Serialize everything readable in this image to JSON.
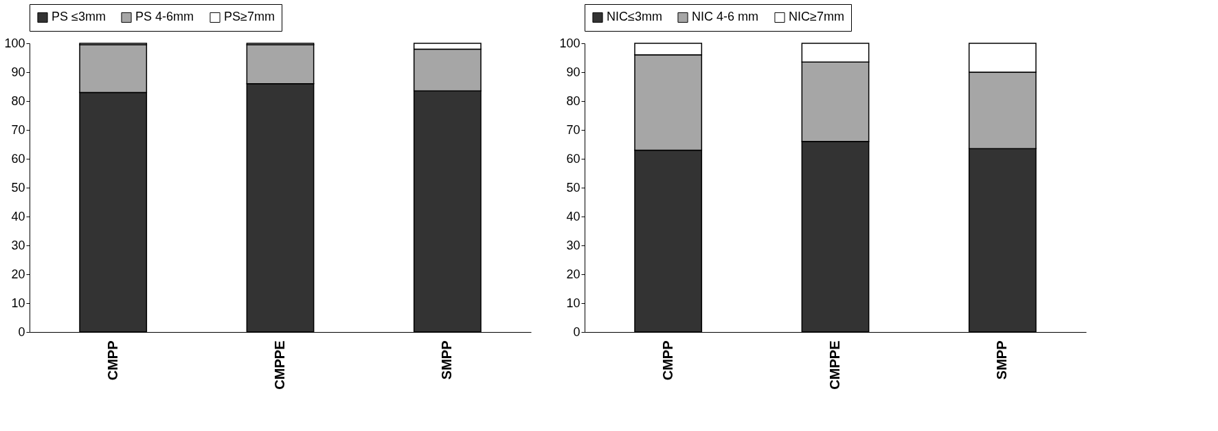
{
  "chart_data": [
    {
      "type": "bar",
      "stacked": true,
      "categories": [
        "CMPP",
        "CMPPE",
        "SMPP"
      ],
      "ylim": [
        0,
        100
      ],
      "yticks": [
        0,
        10,
        20,
        30,
        40,
        50,
        60,
        70,
        80,
        90,
        100
      ],
      "grid": false,
      "legend": "top",
      "series": [
        {
          "name": "PS ≤3mm",
          "color": "#333333",
          "values": [
            83,
            86,
            83.5
          ]
        },
        {
          "name": "PS 4-6mm",
          "color": "#a6a6a6",
          "values": [
            16.5,
            13.5,
            14.5
          ]
        },
        {
          "name": "PS≥7mm",
          "color": "#ffffff",
          "values": [
            0.5,
            0.5,
            2
          ]
        }
      ]
    },
    {
      "type": "bar",
      "stacked": true,
      "categories": [
        "CMPP",
        "CMPPE",
        "SMPP"
      ],
      "ylim": [
        0,
        100
      ],
      "yticks": [
        0,
        10,
        20,
        30,
        40,
        50,
        60,
        70,
        80,
        90,
        100
      ],
      "grid": false,
      "legend": "top",
      "series": [
        {
          "name": "NIC≤3mm",
          "color": "#333333",
          "values": [
            63,
            66,
            63.5
          ]
        },
        {
          "name": "NIC 4-6 mm",
          "color": "#a6a6a6",
          "values": [
            33,
            27.5,
            26.5
          ]
        },
        {
          "name": "NIC≥7mm",
          "color": "#ffffff",
          "values": [
            4,
            6.5,
            10
          ]
        }
      ]
    }
  ]
}
